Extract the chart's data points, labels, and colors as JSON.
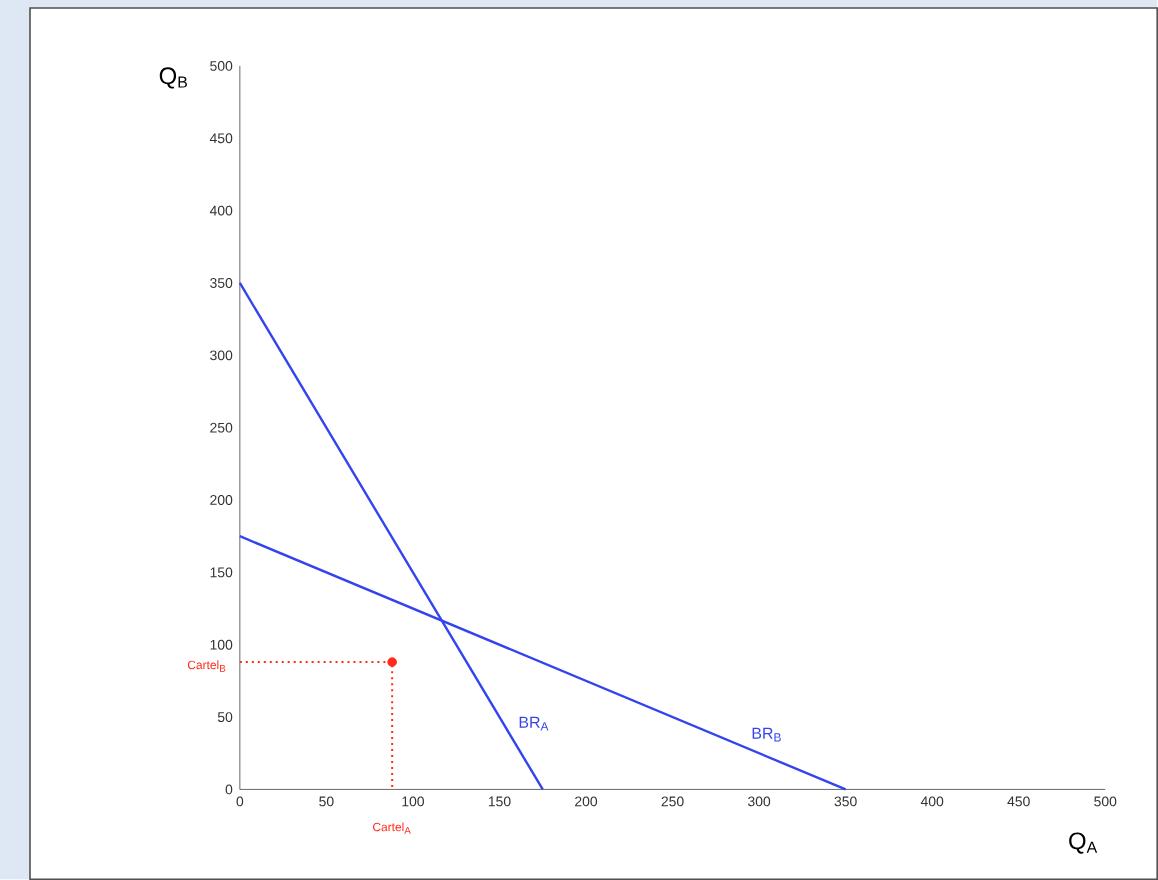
{
  "chart_data": {
    "type": "line",
    "xlabel": "Q$_{A}$",
    "ylabel": "Q$_{B}$",
    "xlim": [
      0,
      500
    ],
    "ylim": [
      0,
      500
    ],
    "xticks": [
      0,
      50,
      100,
      150,
      200,
      250,
      300,
      350,
      400,
      450,
      500
    ],
    "yticks": [
      0,
      50,
      100,
      150,
      200,
      250,
      300,
      350,
      400,
      450,
      500
    ],
    "grid": false,
    "legend": false,
    "marker": "none",
    "line_style": "solid",
    "series": [
      {
        "name": "BR$_{A}$",
        "color": "#3344ee",
        "x": [
          0,
          175
        ],
        "values": [
          350,
          0
        ]
      },
      {
        "name": "BR$_{B}$",
        "color": "#3344ee",
        "x": [
          0,
          350
        ],
        "values": [
          175,
          0
        ]
      },
      {
        "color": "#ff2a1a",
        "x": [
          0,
          88,
          88
        ],
        "values": [
          88,
          88,
          0
        ],
        "line_style": "dotted"
      },
      {
        "type": "scatter",
        "color": "#ff2a1a",
        "x": [
          88
        ],
        "values": [
          88
        ],
        "marker": "circle"
      }
    ],
    "annotations": [
      "Cartel$_{A}$",
      "Cartel$_{B}$"
    ]
  }
}
